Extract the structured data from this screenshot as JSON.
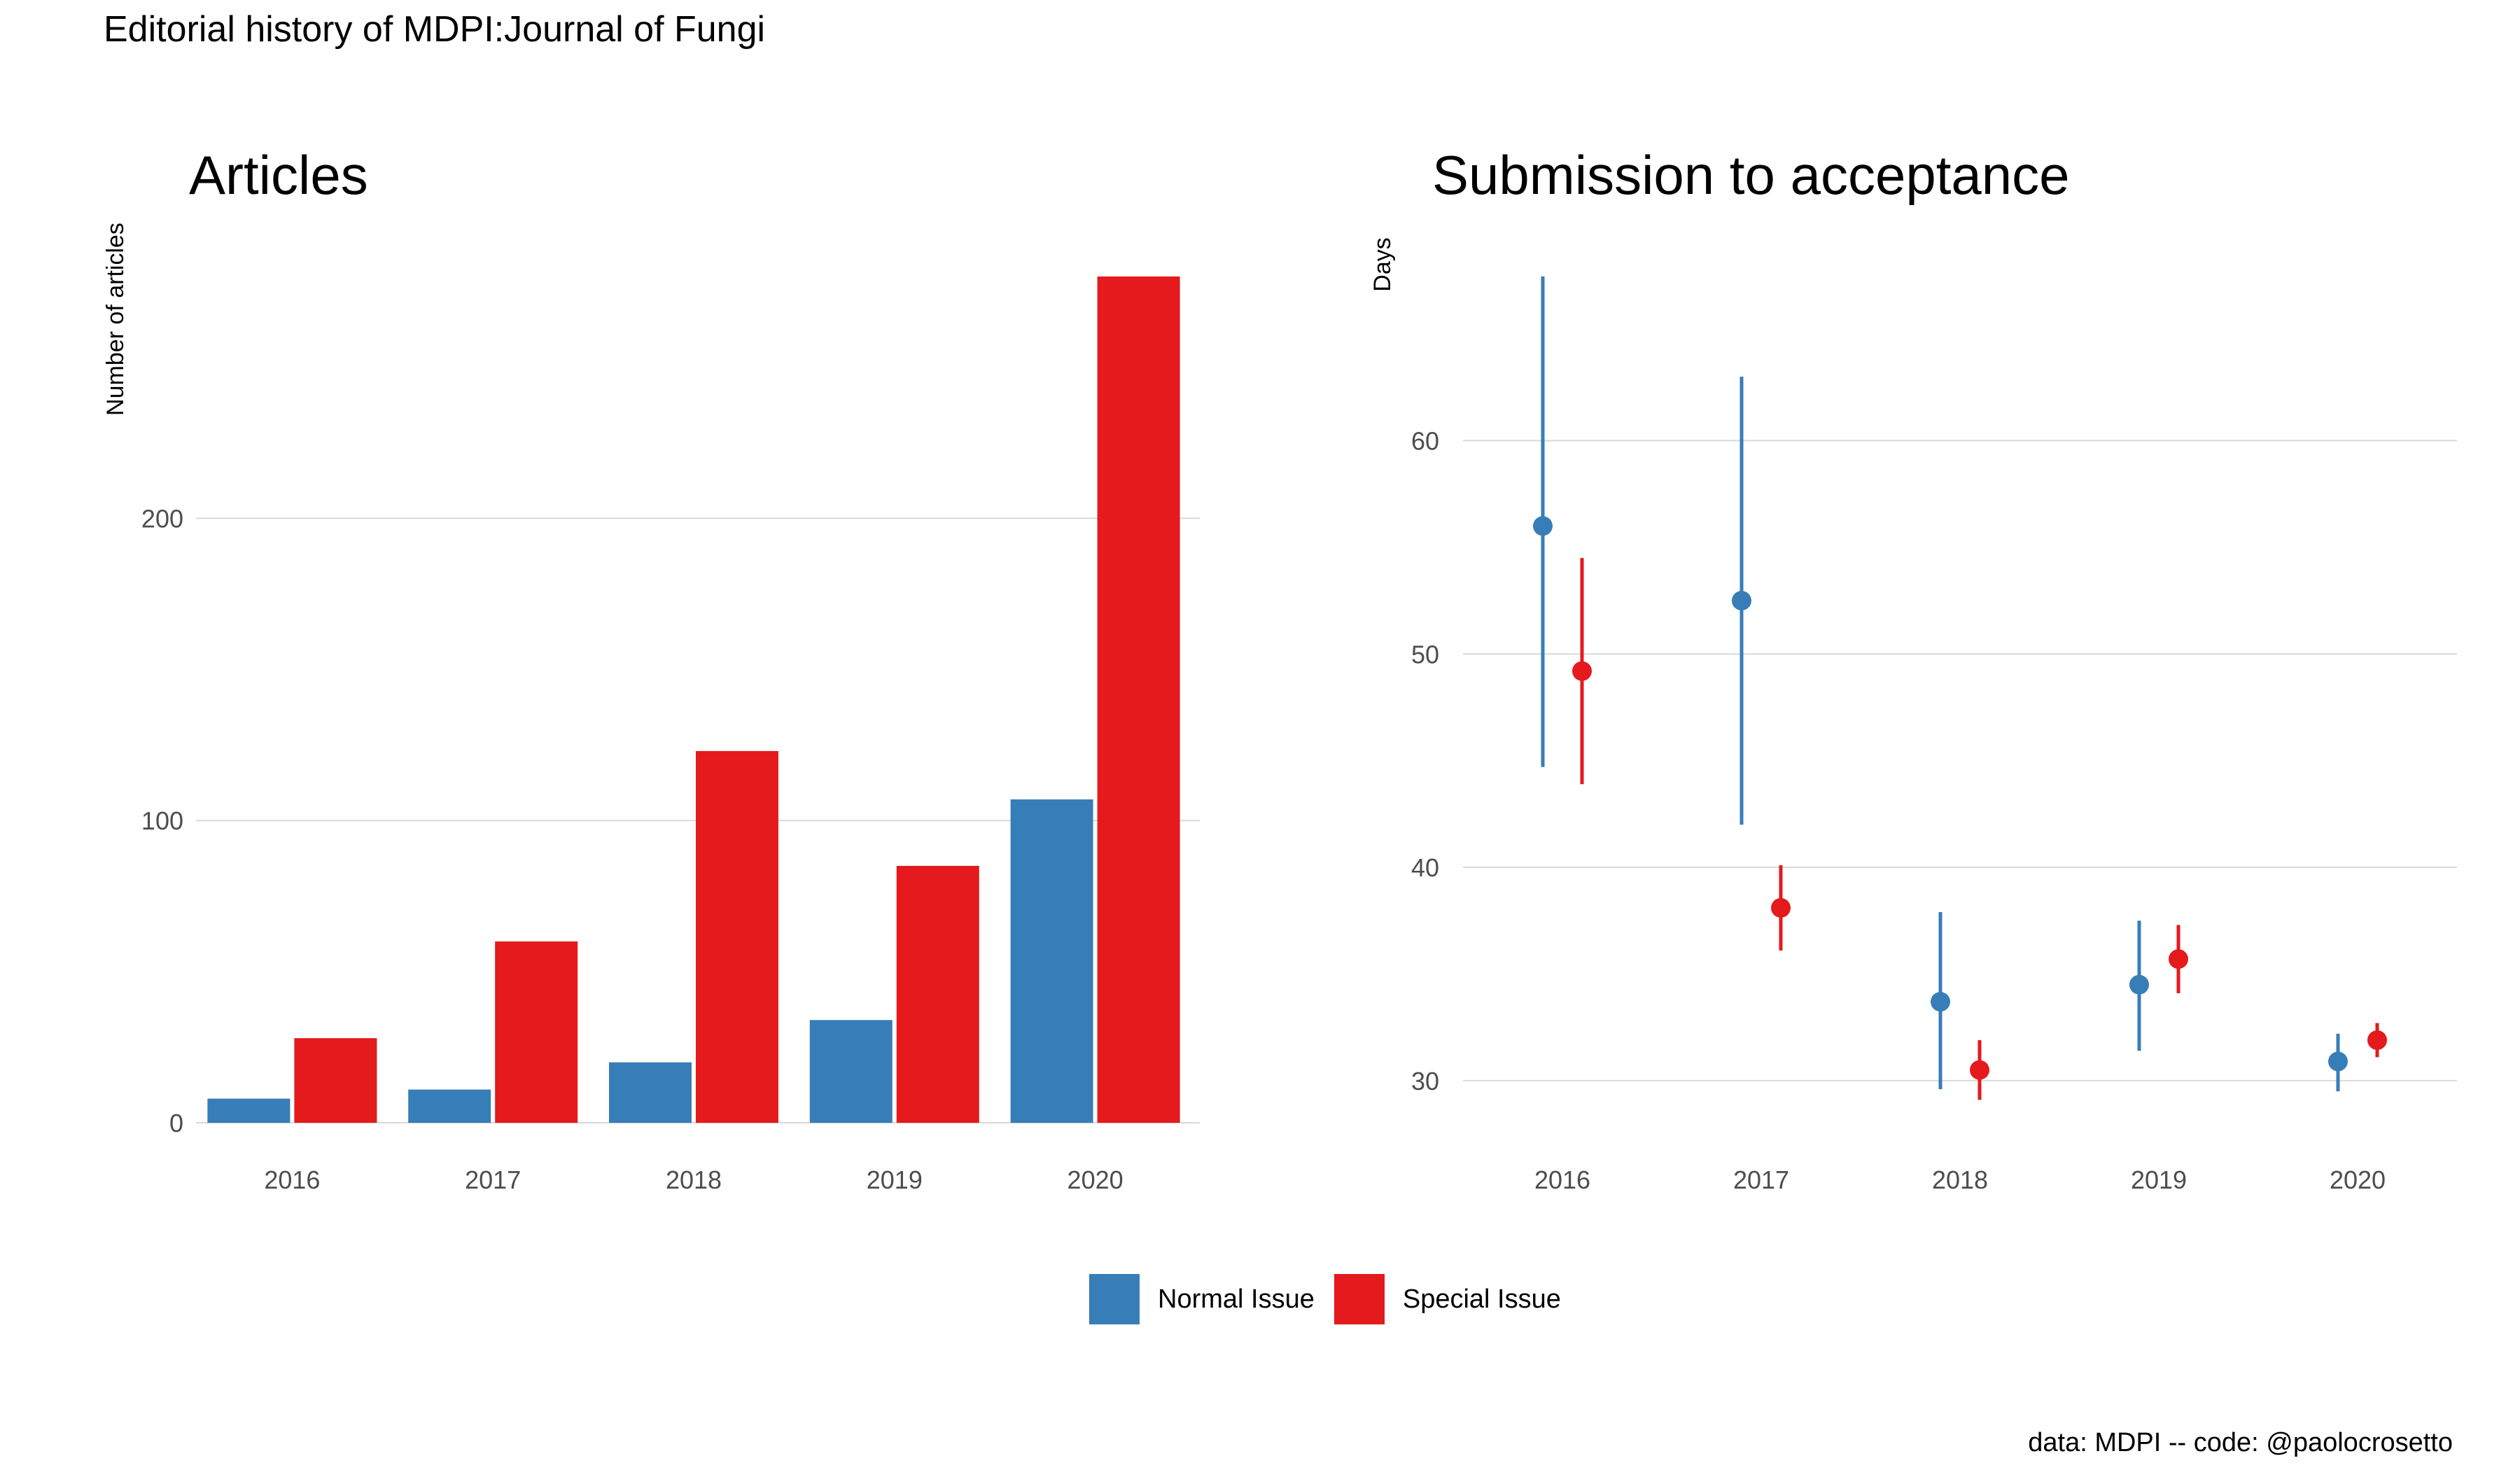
{
  "figure": {
    "suptitle": "Editorial history of MDPI:Journal of Fungi",
    "caption": "data: MDPI -- code: @paolocrosetto",
    "colors": {
      "normal": "#377EB8",
      "special": "#E41A1C",
      "grid": "#D9D9D9",
      "tick": "#4D4D4D"
    }
  },
  "legend": {
    "items": [
      {
        "label": "Normal Issue",
        "color": "#377EB8"
      },
      {
        "label": "Special Issue",
        "color": "#E41A1C"
      }
    ],
    "position": "bottom"
  },
  "chart_data": [
    {
      "type": "bar",
      "title": "Articles",
      "xlabel": "",
      "ylabel": "Number of articles",
      "categories": [
        "2016",
        "2017",
        "2018",
        "2019",
        "2020"
      ],
      "series": [
        {
          "name": "Normal Issue",
          "values": [
            8,
            11,
            20,
            34,
            107
          ]
        },
        {
          "name": "Special Issue",
          "values": [
            28,
            60,
            123,
            85,
            280
          ]
        }
      ],
      "yticks": [
        0,
        100,
        200
      ],
      "ylim": [
        0,
        280
      ],
      "grid": "horizontal"
    },
    {
      "type": "scatter",
      "subtype": "point-range",
      "title": "Submission to acceptance",
      "xlabel": "",
      "ylabel": "Days",
      "categories": [
        "2016",
        "2017",
        "2018",
        "2019",
        "2020"
      ],
      "series": [
        {
          "name": "Normal Issue",
          "values": [
            56,
            52.5,
            33.7,
            34.5,
            30.9
          ],
          "low": [
            44.7,
            42.0,
            29.6,
            31.4,
            29.5
          ],
          "high": [
            67.7,
            63.0,
            37.9,
            37.5,
            32.2
          ]
        },
        {
          "name": "Special Issue",
          "values": [
            49.2,
            38.1,
            30.5,
            35.7,
            31.9
          ],
          "low": [
            43.9,
            36.1,
            29.1,
            34.1,
            31.1
          ],
          "high": [
            54.5,
            40.1,
            31.9,
            37.3,
            32.7
          ]
        }
      ],
      "yticks": [
        30,
        40,
        50,
        60
      ],
      "ylim": [
        27.5,
        69.5
      ],
      "grid": "horizontal"
    }
  ]
}
